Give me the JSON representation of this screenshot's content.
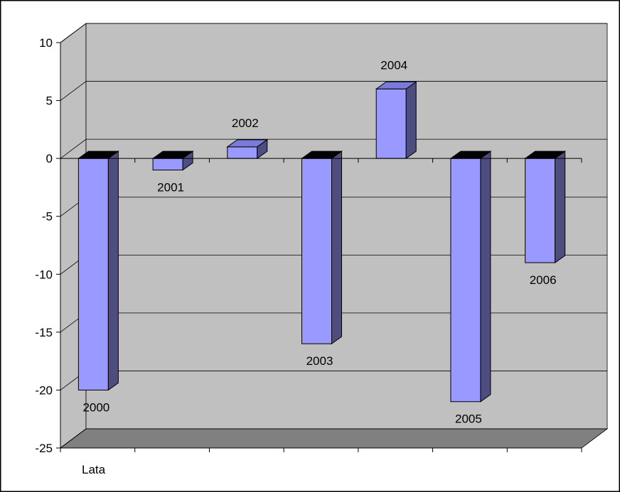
{
  "chart_data": {
    "type": "bar",
    "bar_style": "3d-column",
    "categories": [
      "2000",
      "2001",
      "2002",
      "2003",
      "2004",
      "2005",
      "2006"
    ],
    "values": [
      -20,
      -1,
      1,
      -16,
      6,
      -21,
      -9
    ],
    "data_labels": [
      "2000",
      "2001",
      "2002",
      "2003",
      "2004",
      "2005",
      "2006"
    ],
    "title": "",
    "xlabel": "Lata",
    "ylabel": "",
    "ylim": [
      -25,
      10
    ],
    "y_ticks": [
      "10",
      "5",
      "0",
      "-5",
      "-10",
      "-15",
      "-20",
      "-25"
    ],
    "grid": true,
    "legend": "none"
  },
  "colors": {
    "bar_front": "#9999ff",
    "bar_side": "#4d4d80",
    "bar_top_negative": "#000000",
    "bar_top_positive": "#7a7ad9",
    "wall": "#c0c0c0",
    "floor": "#808080",
    "gridline": "#000000"
  }
}
